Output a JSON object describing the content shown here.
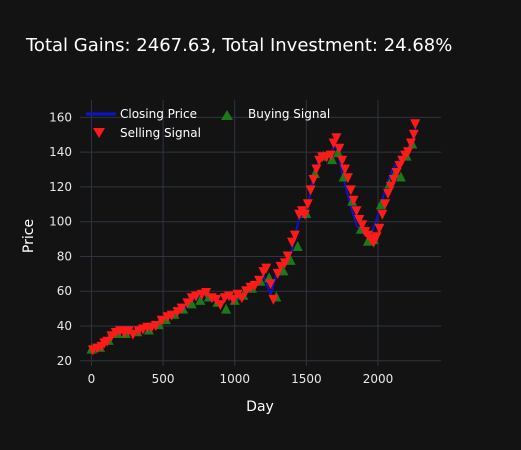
{
  "chart_data": {
    "type": "line",
    "title": "Total Gains: 2467.63, Total Investment: 24.68%",
    "xlabel": "Day",
    "ylabel": "Price",
    "xlim": [
      -80,
      2440
    ],
    "ylim": [
      17,
      170
    ],
    "x_ticks": [
      0,
      500,
      1000,
      1500,
      2000
    ],
    "y_ticks": [
      20,
      40,
      60,
      80,
      100,
      120,
      140,
      160
    ],
    "x_tick_labels": [
      "0",
      "500",
      "1000",
      "1500",
      "2000"
    ],
    "y_tick_labels": [
      "20",
      "40",
      "60",
      "80",
      "100",
      "120",
      "140",
      "160"
    ],
    "grid": true,
    "legend_position": "top-left",
    "colors": {
      "background": "#131313",
      "grid": "#2e3440",
      "closing": "#0a14cc",
      "buy": "#1a7a1a",
      "sell": "#ff1a1a"
    },
    "series": [
      {
        "name": "Closing Price",
        "type": "line",
        "x": [
          0,
          50,
          100,
          150,
          200,
          250,
          300,
          350,
          400,
          450,
          500,
          550,
          600,
          650,
          700,
          750,
          800,
          850,
          900,
          950,
          1000,
          1050,
          1100,
          1150,
          1200,
          1250,
          1300,
          1350,
          1400,
          1450,
          1500,
          1530,
          1560,
          1600,
          1650,
          1680,
          1700,
          1720,
          1750,
          1800,
          1850,
          1900,
          1950,
          2000,
          2050,
          2100,
          2150,
          2200,
          2250,
          2270
        ],
        "y": [
          27,
          27,
          31,
          36,
          37,
          36,
          36,
          38,
          39,
          40,
          42,
          45,
          48,
          50,
          55,
          57,
          58,
          55,
          52,
          57,
          54,
          57,
          61,
          65,
          69,
          58,
          72,
          76,
          84,
          102,
          104,
          118,
          130,
          138,
          138,
          141,
          145,
          140,
          128,
          112,
          98,
          93,
          92,
          104,
          118,
          130,
          135,
          140,
          150,
          156
        ]
      },
      {
        "name": "Buying Signal",
        "type": "marker",
        "marker": "triangle-up",
        "x": [
          0,
          60,
          120,
          180,
          240,
          320,
          400,
          470,
          520,
          580,
          640,
          700,
          760,
          820,
          880,
          940,
          1000,
          1060,
          1120,
          1180,
          1240,
          1290,
          1340,
          1390,
          1440,
          1500,
          1560,
          1620,
          1680,
          1720,
          1760,
          1820,
          1880,
          1930,
          1970,
          2020,
          2080,
          2120,
          2160,
          2200,
          2240
        ],
        "y": [
          27,
          28,
          32,
          36,
          36,
          37,
          38,
          41,
          44,
          47,
          50,
          53,
          55,
          57,
          54,
          50,
          55,
          58,
          62,
          66,
          68,
          57,
          72,
          78,
          86,
          105,
          128,
          138,
          136,
          140,
          126,
          112,
          96,
          89,
          90,
          110,
          122,
          128,
          126,
          138,
          145
        ]
      },
      {
        "name": "Selling Signal",
        "type": "marker",
        "marker": "triangle-down",
        "x": [
          10,
          40,
          70,
          90,
          110,
          140,
          170,
          200,
          230,
          260,
          290,
          330,
          360,
          390,
          420,
          450,
          490,
          530,
          560,
          600,
          630,
          670,
          700,
          730,
          770,
          800,
          840,
          870,
          900,
          930,
          960,
          990,
          1020,
          1050,
          1080,
          1110,
          1140,
          1170,
          1200,
          1220,
          1250,
          1270,
          1300,
          1320,
          1350,
          1370,
          1400,
          1420,
          1450,
          1470,
          1490,
          1510,
          1530,
          1550,
          1570,
          1590,
          1610,
          1640,
          1670,
          1690,
          1710,
          1730,
          1750,
          1770,
          1790,
          1810,
          1830,
          1850,
          1870,
          1890,
          1910,
          1930,
          1950,
          1970,
          1990,
          2010,
          2030,
          2050,
          2070,
          2090,
          2110,
          2130,
          2150,
          2170,
          2190,
          2210,
          2230,
          2250,
          2260
        ],
        "y": [
          26,
          27,
          28,
          30,
          31,
          34,
          36,
          37,
          36,
          37,
          35,
          37,
          38,
          39,
          39,
          40,
          43,
          45,
          46,
          48,
          50,
          53,
          56,
          57,
          58,
          59,
          56,
          55,
          52,
          56,
          57,
          55,
          58,
          56,
          60,
          62,
          63,
          66,
          71,
          73,
          64,
          55,
          70,
          74,
          76,
          80,
          88,
          92,
          104,
          106,
          104,
          110,
          118,
          124,
          130,
          135,
          137,
          137,
          138,
          145,
          148,
          142,
          135,
          130,
          125,
          118,
          112,
          106,
          101,
          98,
          94,
          92,
          90,
          88,
          91,
          96,
          104,
          110,
          116,
          120,
          124,
          128,
          132,
          135,
          138,
          140,
          145,
          150,
          156
        ]
      }
    ]
  }
}
